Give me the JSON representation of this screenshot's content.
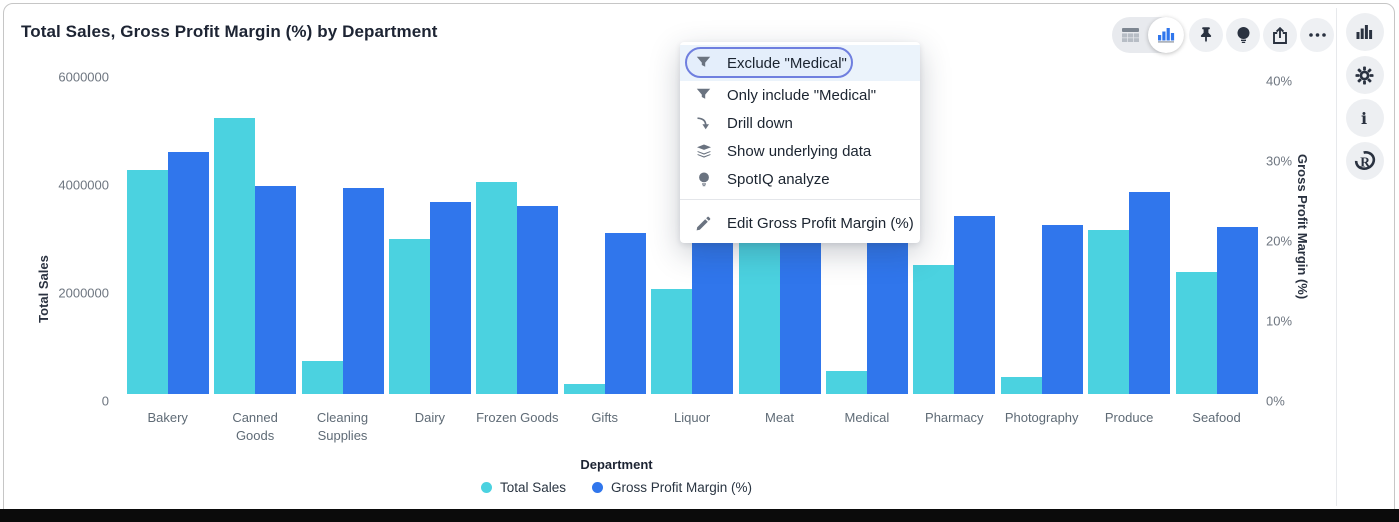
{
  "window": {
    "title": "Total Sales, Gross Profit Margin (%) by Department"
  },
  "toolbar": {
    "view_toggle": [
      {
        "icon": "table-icon",
        "selected": false
      },
      {
        "icon": "chart-icon",
        "selected": true
      }
    ],
    "buttons": [
      {
        "icon": "pin-icon",
        "name": "pin-button"
      },
      {
        "icon": "bulb-dark-icon",
        "name": "spotiq-button"
      },
      {
        "icon": "share-icon",
        "name": "share-button"
      },
      {
        "icon": "more-icon",
        "name": "more-button"
      }
    ]
  },
  "side_rail": {
    "buttons": [
      {
        "icon": "bar-chart-icon",
        "name": "rail-chart-button"
      },
      {
        "icon": "gear-icon",
        "name": "rail-settings-button"
      },
      {
        "icon": "info-icon",
        "name": "rail-info-button"
      },
      {
        "icon": "r-logo-icon",
        "name": "rail-r-button"
      }
    ]
  },
  "context_menu": {
    "items": [
      {
        "icon": "filter-icon",
        "label": "Exclude \"Medical\"",
        "highlighted": true
      },
      {
        "icon": "filter-icon",
        "label": "Only include \"Medical\""
      },
      {
        "icon": "drill-down-icon",
        "label": "Drill down"
      },
      {
        "icon": "layers-icon",
        "label": "Show underlying data"
      },
      {
        "icon": "bulb-icon",
        "label": "SpotIQ analyze"
      },
      {
        "divider": true
      },
      {
        "icon": "pencil-icon",
        "label": "Edit Gross Profit Margin (%)",
        "edit": true
      }
    ]
  },
  "chart_data": {
    "type": "bar",
    "title": "Total Sales, Gross Profit Margin (%) by Department",
    "categories": [
      "Bakery",
      "Canned Goods",
      "Cleaning Supplies",
      "Dairy",
      "Frozen Goods",
      "Gifts",
      "Liquor",
      "Meat",
      "Medical",
      "Pharmacy",
      "Photography",
      "Produce",
      "Seafood"
    ],
    "series": [
      {
        "name": "Total Sales",
        "axis": "left",
        "color": "#4bd2e0",
        "values": [
          4150000,
          5110000,
          610000,
          2870000,
          3930000,
          190000,
          1940000,
          3350000,
          430000,
          2390000,
          310000,
          3040000,
          2260000
        ]
      },
      {
        "name": "Gross Profit Margin (%)",
        "axis": "right",
        "color": "#3076ec",
        "values": [
          30.3,
          26.0,
          25.7,
          24.0,
          23.5,
          20.1,
          21.3,
          22.0,
          20.6,
          22.2,
          21.1,
          25.2,
          20.9
        ]
      }
    ],
    "xlabel": "Department",
    "y_left": {
      "label": "Total Sales",
      "max": 6000000,
      "ticks": [
        0,
        2000000,
        4000000,
        6000000
      ]
    },
    "y_right": {
      "label": "Gross Profit Margin (%)",
      "max": 40,
      "ticks": [
        0,
        10,
        20,
        30,
        40
      ],
      "tick_suffix": "%"
    },
    "legend_position": "bottom",
    "grid": false
  },
  "colors": {
    "total_sales": "#4bd2e0",
    "gross_profit_margin": "#3076ec",
    "menu_highlight_border": "#6f7fdf",
    "menu_highlight_bg": "#ebf3fb",
    "toolbar_accent": "#3076ec"
  }
}
